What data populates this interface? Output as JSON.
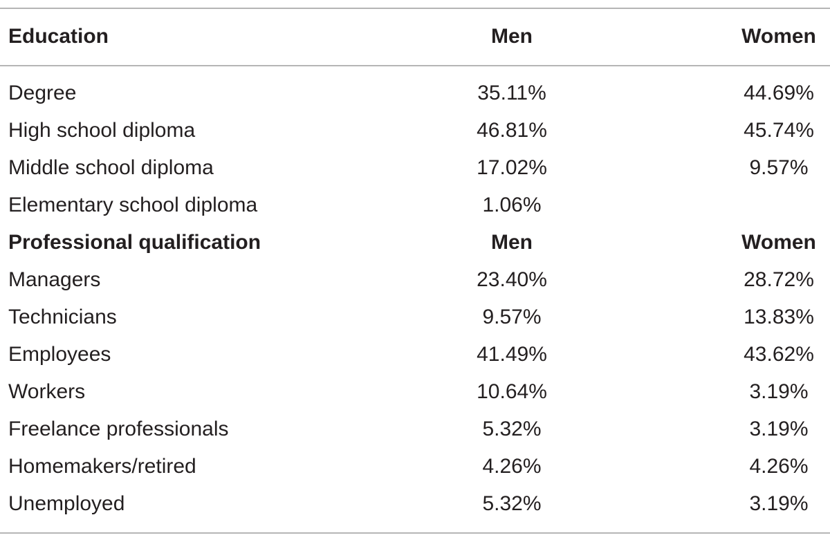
{
  "table": {
    "sections": [
      {
        "header": [
          "Education",
          "Men",
          "Women"
        ],
        "rows": [
          [
            "Degree",
            "35.11%",
            "44.69%"
          ],
          [
            "High school diploma",
            "46.81%",
            "45.74%"
          ],
          [
            "Middle school diploma",
            "17.02%",
            "9.57%"
          ],
          [
            "Elementary school diploma",
            "1.06%",
            null
          ]
        ]
      },
      {
        "header": [
          "Professional qualification",
          "Men",
          "Women"
        ],
        "rows": [
          [
            "Managers",
            "23.40%",
            "28.72%"
          ],
          [
            "Technicians",
            "9.57%",
            "13.83%"
          ],
          [
            "Employees",
            "41.49%",
            "43.62%"
          ],
          [
            "Workers",
            "10.64%",
            "3.19%"
          ],
          [
            "Freelance professionals",
            "5.32%",
            "3.19%"
          ],
          [
            "Homemakers/retired",
            "4.26%",
            "4.26%"
          ],
          [
            "Unemployed",
            "5.32%",
            "3.19%"
          ]
        ]
      }
    ]
  }
}
